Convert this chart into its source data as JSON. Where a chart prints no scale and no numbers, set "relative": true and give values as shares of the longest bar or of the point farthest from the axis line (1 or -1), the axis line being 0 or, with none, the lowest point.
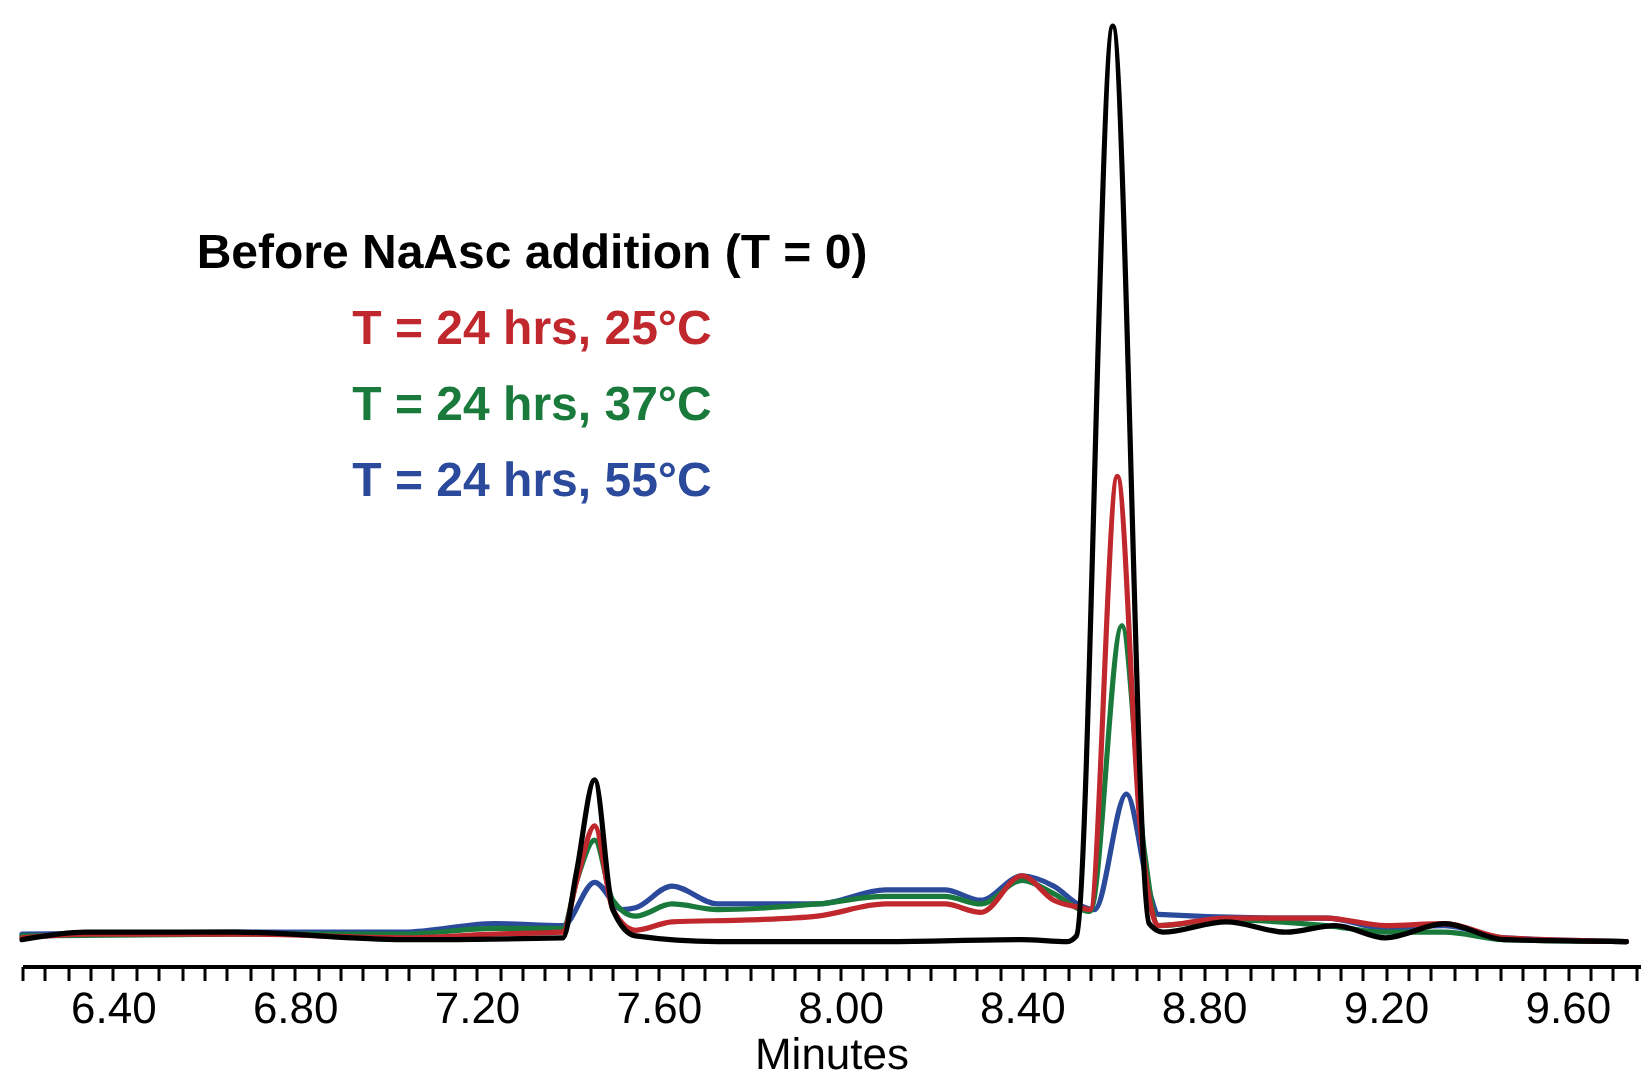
{
  "chart_data": {
    "type": "line",
    "xlabel": "Minutes",
    "relative": true,
    "legend": "top left",
    "xlim": [
      6.2,
      9.76
    ],
    "xticks": [
      {
        "value": 6.2,
        "label": null
      },
      {
        "value": 6.25,
        "label": null
      },
      {
        "value": 6.3,
        "label": null
      },
      {
        "value": 6.35,
        "label": null
      },
      {
        "value": 6.4,
        "label": "6.40"
      },
      {
        "value": 6.45,
        "label": null
      },
      {
        "value": 6.5,
        "label": null
      },
      {
        "value": 6.55,
        "label": null
      },
      {
        "value": 6.6,
        "label": null
      },
      {
        "value": 6.65,
        "label": null
      },
      {
        "value": 6.7,
        "label": null
      },
      {
        "value": 6.75,
        "label": null
      },
      {
        "value": 6.8,
        "label": "6.80"
      },
      {
        "value": 6.85,
        "label": null
      },
      {
        "value": 6.9,
        "label": null
      },
      {
        "value": 6.95,
        "label": null
      },
      {
        "value": 7.0,
        "label": null
      },
      {
        "value": 7.05,
        "label": null
      },
      {
        "value": 7.1,
        "label": null
      },
      {
        "value": 7.15,
        "label": null
      },
      {
        "value": 7.2,
        "label": "7.20"
      },
      {
        "value": 7.25,
        "label": null
      },
      {
        "value": 7.3,
        "label": null
      },
      {
        "value": 7.35,
        "label": null
      },
      {
        "value": 7.4,
        "label": null
      },
      {
        "value": 7.45,
        "label": null
      },
      {
        "value": 7.5,
        "label": null
      },
      {
        "value": 7.55,
        "label": null
      },
      {
        "value": 7.6,
        "label": "7.60"
      },
      {
        "value": 7.65,
        "label": null
      },
      {
        "value": 7.7,
        "label": null
      },
      {
        "value": 7.75,
        "label": null
      },
      {
        "value": 7.8,
        "label": null
      },
      {
        "value": 7.85,
        "label": null
      },
      {
        "value": 7.9,
        "label": null
      },
      {
        "value": 7.95,
        "label": null
      },
      {
        "value": 8.0,
        "label": "8.00"
      },
      {
        "value": 8.05,
        "label": null
      },
      {
        "value": 8.1,
        "label": null
      },
      {
        "value": 8.15,
        "label": null
      },
      {
        "value": 8.2,
        "label": null
      },
      {
        "value": 8.25,
        "label": null
      },
      {
        "value": 8.3,
        "label": null
      },
      {
        "value": 8.35,
        "label": null
      },
      {
        "value": 8.4,
        "label": "8.40"
      },
      {
        "value": 8.45,
        "label": null
      },
      {
        "value": 8.5,
        "label": null
      },
      {
        "value": 8.55,
        "label": null
      },
      {
        "value": 8.6,
        "label": null
      },
      {
        "value": 8.65,
        "label": null
      },
      {
        "value": 8.7,
        "label": null
      },
      {
        "value": 8.75,
        "label": null
      },
      {
        "value": 8.8,
        "label": "8.80"
      },
      {
        "value": 8.85,
        "label": null
      },
      {
        "value": 8.9,
        "label": null
      },
      {
        "value": 8.95,
        "label": null
      },
      {
        "value": 9.0,
        "label": null
      },
      {
        "value": 9.05,
        "label": null
      },
      {
        "value": 9.1,
        "label": null
      },
      {
        "value": 9.15,
        "label": null
      },
      {
        "value": 9.2,
        "label": "9.20"
      },
      {
        "value": 9.25,
        "label": null
      },
      {
        "value": 9.3,
        "label": null
      },
      {
        "value": 9.35,
        "label": null
      },
      {
        "value": 9.4,
        "label": null
      },
      {
        "value": 9.45,
        "label": null
      },
      {
        "value": 9.5,
        "label": null
      },
      {
        "value": 9.55,
        "label": null
      },
      {
        "value": 9.6,
        "label": "9.60"
      },
      {
        "value": 9.65,
        "label": null
      },
      {
        "value": 9.7,
        "label": null
      },
      {
        "value": 9.75,
        "label": null
      }
    ],
    "series": [
      {
        "name": "Before NaAsc addition (T = 0)",
        "color": "#000000",
        "x": [
          6.2,
          6.34,
          6.67,
          7.04,
          7.39,
          7.42,
          7.46,
          7.5,
          7.55,
          7.73,
          8.1,
          8.4,
          8.5,
          8.52,
          8.6,
          8.68,
          8.71,
          8.85,
          8.98,
          9.09,
          9.2,
          9.33,
          9.46,
          9.73
        ],
        "values": [
          0.028,
          0.036,
          0.036,
          0.028,
          0.03,
          0.1,
          0.198,
          0.06,
          0.032,
          0.026,
          0.026,
          0.028,
          0.026,
          0.032,
          1,
          0.045,
          0.036,
          0.047,
          0.036,
          0.043,
          0.03,
          0.045,
          0.028,
          0.026
        ]
      },
      {
        "name": "T = 24 hrs, 25°C",
        "color": "#c0282d",
        "x": [
          6.2,
          6.34,
          6.67,
          7.04,
          7.24,
          7.39,
          7.42,
          7.46,
          7.5,
          7.55,
          7.63,
          7.8,
          7.95,
          8.1,
          8.23,
          8.31,
          8.4,
          8.47,
          8.53,
          8.55,
          8.61,
          8.66,
          8.7,
          8.85,
          9.07,
          9.2,
          9.33,
          9.46,
          9.73
        ],
        "values": [
          0.03,
          0.034,
          0.034,
          0.03,
          0.034,
          0.036,
          0.09,
          0.149,
          0.06,
          0.038,
          0.047,
          0.049,
          0.053,
          0.066,
          0.066,
          0.057,
          0.096,
          0.07,
          0.062,
          0.06,
          0.521,
          0.15,
          0.043,
          0.051,
          0.051,
          0.043,
          0.045,
          0.03,
          0.026
        ]
      },
      {
        "name": "T = 24 hrs, 37°C",
        "color": "#1a7a3c",
        "x": [
          6.2,
          6.67,
          7.04,
          7.24,
          7.39,
          7.42,
          7.46,
          7.5,
          7.55,
          7.63,
          7.73,
          7.95,
          8.1,
          8.23,
          8.31,
          8.4,
          8.47,
          8.53,
          8.55,
          8.62,
          8.67,
          8.7,
          8.85,
          9.07,
          9.2,
          9.33,
          9.46,
          9.73
        ],
        "values": [
          0.032,
          0.034,
          0.034,
          0.04,
          0.04,
          0.09,
          0.134,
          0.07,
          0.053,
          0.066,
          0.06,
          0.066,
          0.074,
          0.074,
          0.066,
          0.091,
          0.077,
          0.06,
          0.058,
          0.362,
          0.12,
          0.043,
          0.049,
          0.043,
          0.036,
          0.036,
          0.028,
          0.026
        ]
      },
      {
        "name": "T = 24 hrs, 55°C",
        "color": "#2b4a9c",
        "x": [
          6.2,
          6.67,
          7.04,
          7.24,
          7.39,
          7.46,
          7.52,
          7.55,
          7.63,
          7.73,
          7.95,
          8.1,
          8.23,
          8.31,
          8.4,
          8.47,
          8.53,
          8.56,
          8.63,
          8.68,
          8.7,
          8.98,
          9.07,
          9.2,
          9.33,
          9.46,
          9.73
        ],
        "values": [
          0.034,
          0.036,
          0.036,
          0.045,
          0.043,
          0.089,
          0.06,
          0.062,
          0.085,
          0.066,
          0.066,
          0.081,
          0.081,
          0.07,
          0.096,
          0.085,
          0.064,
          0.06,
          0.183,
          0.08,
          0.055,
          0.051,
          0.051,
          0.04,
          0.043,
          0.03,
          0.026
        ]
      }
    ]
  }
}
